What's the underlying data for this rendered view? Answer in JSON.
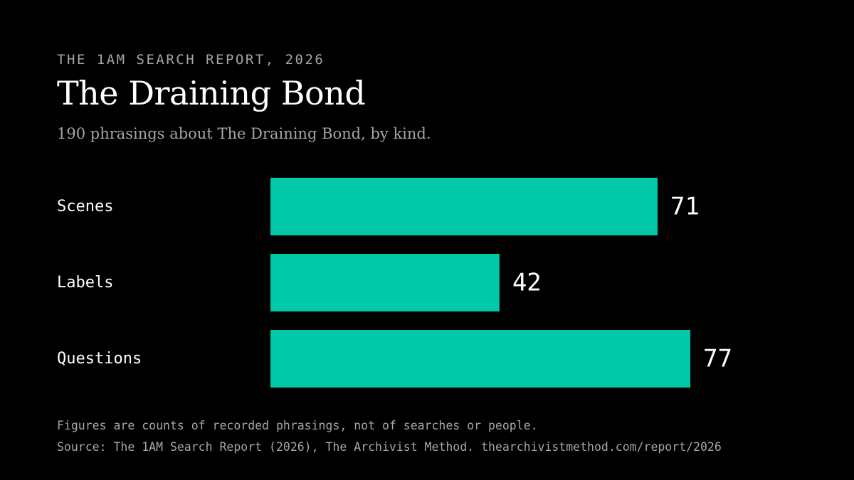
{
  "header": {
    "kicker": "THE 1AM SEARCH REPORT, 2026",
    "title": "The Draining Bond",
    "subtitle": "190 phrasings about The Draining Bond, by kind."
  },
  "footer": {
    "note": "Figures are counts of recorded phrasings, not of searches or people.",
    "source": "Source: The 1AM Search Report (2026), The Archivist Method. thearchivistmethod.com/report/2026"
  },
  "colors": {
    "background": "#000000",
    "bar": "#00c8a8",
    "label": "#ffffff",
    "muted": "#a6a6a6"
  },
  "chart_data": {
    "type": "bar",
    "orientation": "horizontal",
    "categories": [
      "Scenes",
      "Labels",
      "Questions"
    ],
    "values": [
      71,
      42,
      77
    ],
    "title": "The Draining Bond",
    "subtitle": "190 phrasings about The Draining Bond, by kind.",
    "xlabel": "",
    "ylabel": "",
    "grid": false,
    "legend": "none",
    "data_labels": true
  }
}
